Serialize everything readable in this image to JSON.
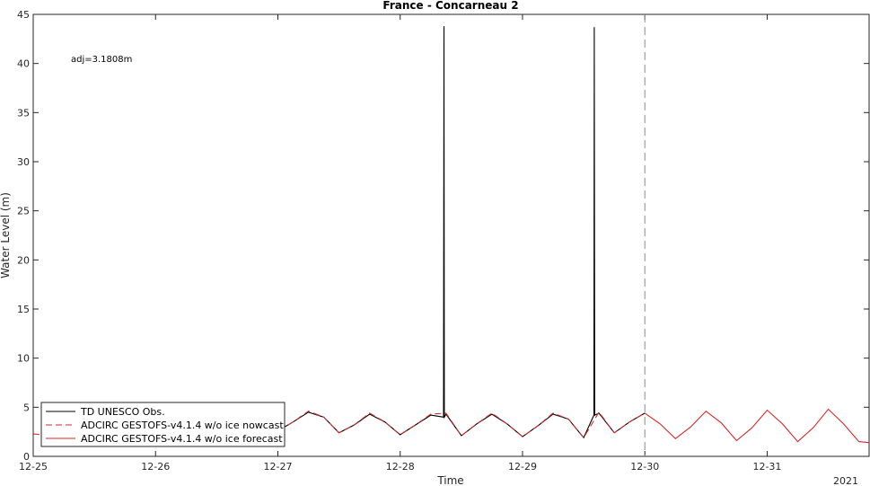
{
  "chart_data": {
    "type": "line",
    "title": "France - Concarneau 2",
    "xlabel": "Time",
    "ylabel": "Water Level (m)",
    "xlim": [
      "2020-12-25T00:00",
      "2020-12-31T20:00"
    ],
    "ylim": [
      0,
      45
    ],
    "yticks": [
      0,
      5,
      10,
      15,
      20,
      25,
      30,
      35,
      40,
      45
    ],
    "xticks": [
      {
        "date": "2020-12-25",
        "label": "12-25"
      },
      {
        "date": "2020-12-26",
        "label": "12-26"
      },
      {
        "date": "2020-12-27",
        "label": "12-27"
      },
      {
        "date": "2020-12-28",
        "label": "12-28"
      },
      {
        "date": "2020-12-29",
        "label": "12-29"
      },
      {
        "date": "2020-12-30",
        "label": "12-30"
      },
      {
        "date": "2020-12-31",
        "label": "12-31"
      }
    ],
    "year_label": "2021",
    "annotation": "adj=3.1808m",
    "forecast_start_line": "2020-12-30T00:00",
    "grid": false,
    "legend_position": "bottom-left",
    "series": [
      {
        "name": "TD UNESCO Obs.",
        "color": "#000000",
        "style": "solid",
        "x": [
          "2020-12-25T00:00",
          "2020-12-25T04:00",
          "2020-12-25T08:00",
          "2020-12-25T12:00",
          "2020-12-25T16:00",
          "2020-12-25T20:00",
          "2020-12-26T00:00",
          "2020-12-26T04:00",
          "2020-12-26T08:00",
          "2020-12-26T12:00",
          "2020-12-26T16:00",
          "2020-12-26T20:00",
          "2020-12-27T00:00",
          "2020-12-27T03:00",
          "2020-12-27T06:00",
          "2020-12-27T09:00",
          "2020-12-27T12:00",
          "2020-12-27T15:00",
          "2020-12-27T18:00",
          "2020-12-27T21:00",
          "2020-12-28T00:00",
          "2020-12-28T03:00",
          "2020-12-28T06:00",
          "2020-12-28T08:30",
          "2020-12-28T08:35",
          "2020-12-28T08:40",
          "2020-12-28T09:00",
          "2020-12-28T12:00",
          "2020-12-28T15:00",
          "2020-12-28T18:00",
          "2020-12-28T21:00",
          "2020-12-29T00:00",
          "2020-12-29T03:00",
          "2020-12-29T06:00",
          "2020-12-29T09:00",
          "2020-12-29T12:00",
          "2020-12-29T14:00",
          "2020-12-29T14:05",
          "2020-12-29T14:10",
          "2020-12-29T15:00",
          "2020-12-29T18:00",
          "2020-12-29T21:00",
          "2020-12-30T00:00"
        ],
        "y": [
          2.2,
          null,
          null,
          null,
          null,
          null,
          null,
          null,
          null,
          null,
          null,
          null,
          2.6,
          3.5,
          4.5,
          4.0,
          2.4,
          3.2,
          4.3,
          3.5,
          2.2,
          3.2,
          4.2,
          4.0,
          43.8,
          4.0,
          4.3,
          2.1,
          3.3,
          4.3,
          3.3,
          2.0,
          3.1,
          4.3,
          3.8,
          1.9,
          4.2,
          43.7,
          4.2,
          4.4,
          2.4,
          3.5,
          4.4
        ]
      },
      {
        "name": "ADCIRC GESTOFS-v4.1.4 w/o ice nowcast",
        "color": "#d62728",
        "style": "dashed",
        "x": [
          "2020-12-25T00:00",
          "2020-12-25T03:00",
          "2020-12-27T00:00",
          "2020-12-27T03:00",
          "2020-12-27T06:00",
          "2020-12-27T09:00",
          "2020-12-27T12:00",
          "2020-12-27T15:00",
          "2020-12-27T18:00",
          "2020-12-27T21:00",
          "2020-12-28T00:00",
          "2020-12-28T03:00",
          "2020-12-28T06:00",
          "2020-12-28T09:00",
          "2020-12-28T12:00",
          "2020-12-28T15:00",
          "2020-12-28T18:00",
          "2020-12-28T21:00",
          "2020-12-29T00:00",
          "2020-12-29T03:00",
          "2020-12-29T06:00",
          "2020-12-29T09:00",
          "2020-12-29T12:00",
          "2020-12-29T15:00",
          "2020-12-29T18:00",
          "2020-12-29T21:00",
          "2020-12-30T00:00"
        ],
        "y": [
          2.3,
          2.1,
          2.6,
          3.5,
          4.6,
          4.0,
          2.4,
          3.2,
          4.4,
          3.5,
          2.2,
          3.2,
          4.3,
          4.4,
          2.1,
          3.3,
          4.4,
          3.3,
          2.0,
          3.1,
          4.4,
          3.8,
          1.9,
          4.5,
          2.4,
          3.5,
          4.4
        ]
      },
      {
        "name": "ADCIRC GESTOFS-v4.1.4 w/o ice forecast",
        "color": "#d62728",
        "style": "solid",
        "x": [
          "2020-12-30T00:00",
          "2020-12-30T03:00",
          "2020-12-30T06:00",
          "2020-12-30T09:00",
          "2020-12-30T12:00",
          "2020-12-30T15:00",
          "2020-12-30T18:00",
          "2020-12-30T21:00",
          "2020-12-31T00:00",
          "2020-12-31T03:00",
          "2020-12-31T06:00",
          "2020-12-31T09:00",
          "2020-12-31T12:00",
          "2020-12-31T15:00",
          "2020-12-31T18:00",
          "2020-12-31T20:00"
        ],
        "y": [
          4.4,
          3.3,
          1.8,
          3.0,
          4.6,
          3.4,
          1.6,
          2.9,
          4.7,
          3.3,
          1.5,
          2.9,
          4.8,
          3.3,
          1.5,
          1.4
        ]
      }
    ]
  }
}
